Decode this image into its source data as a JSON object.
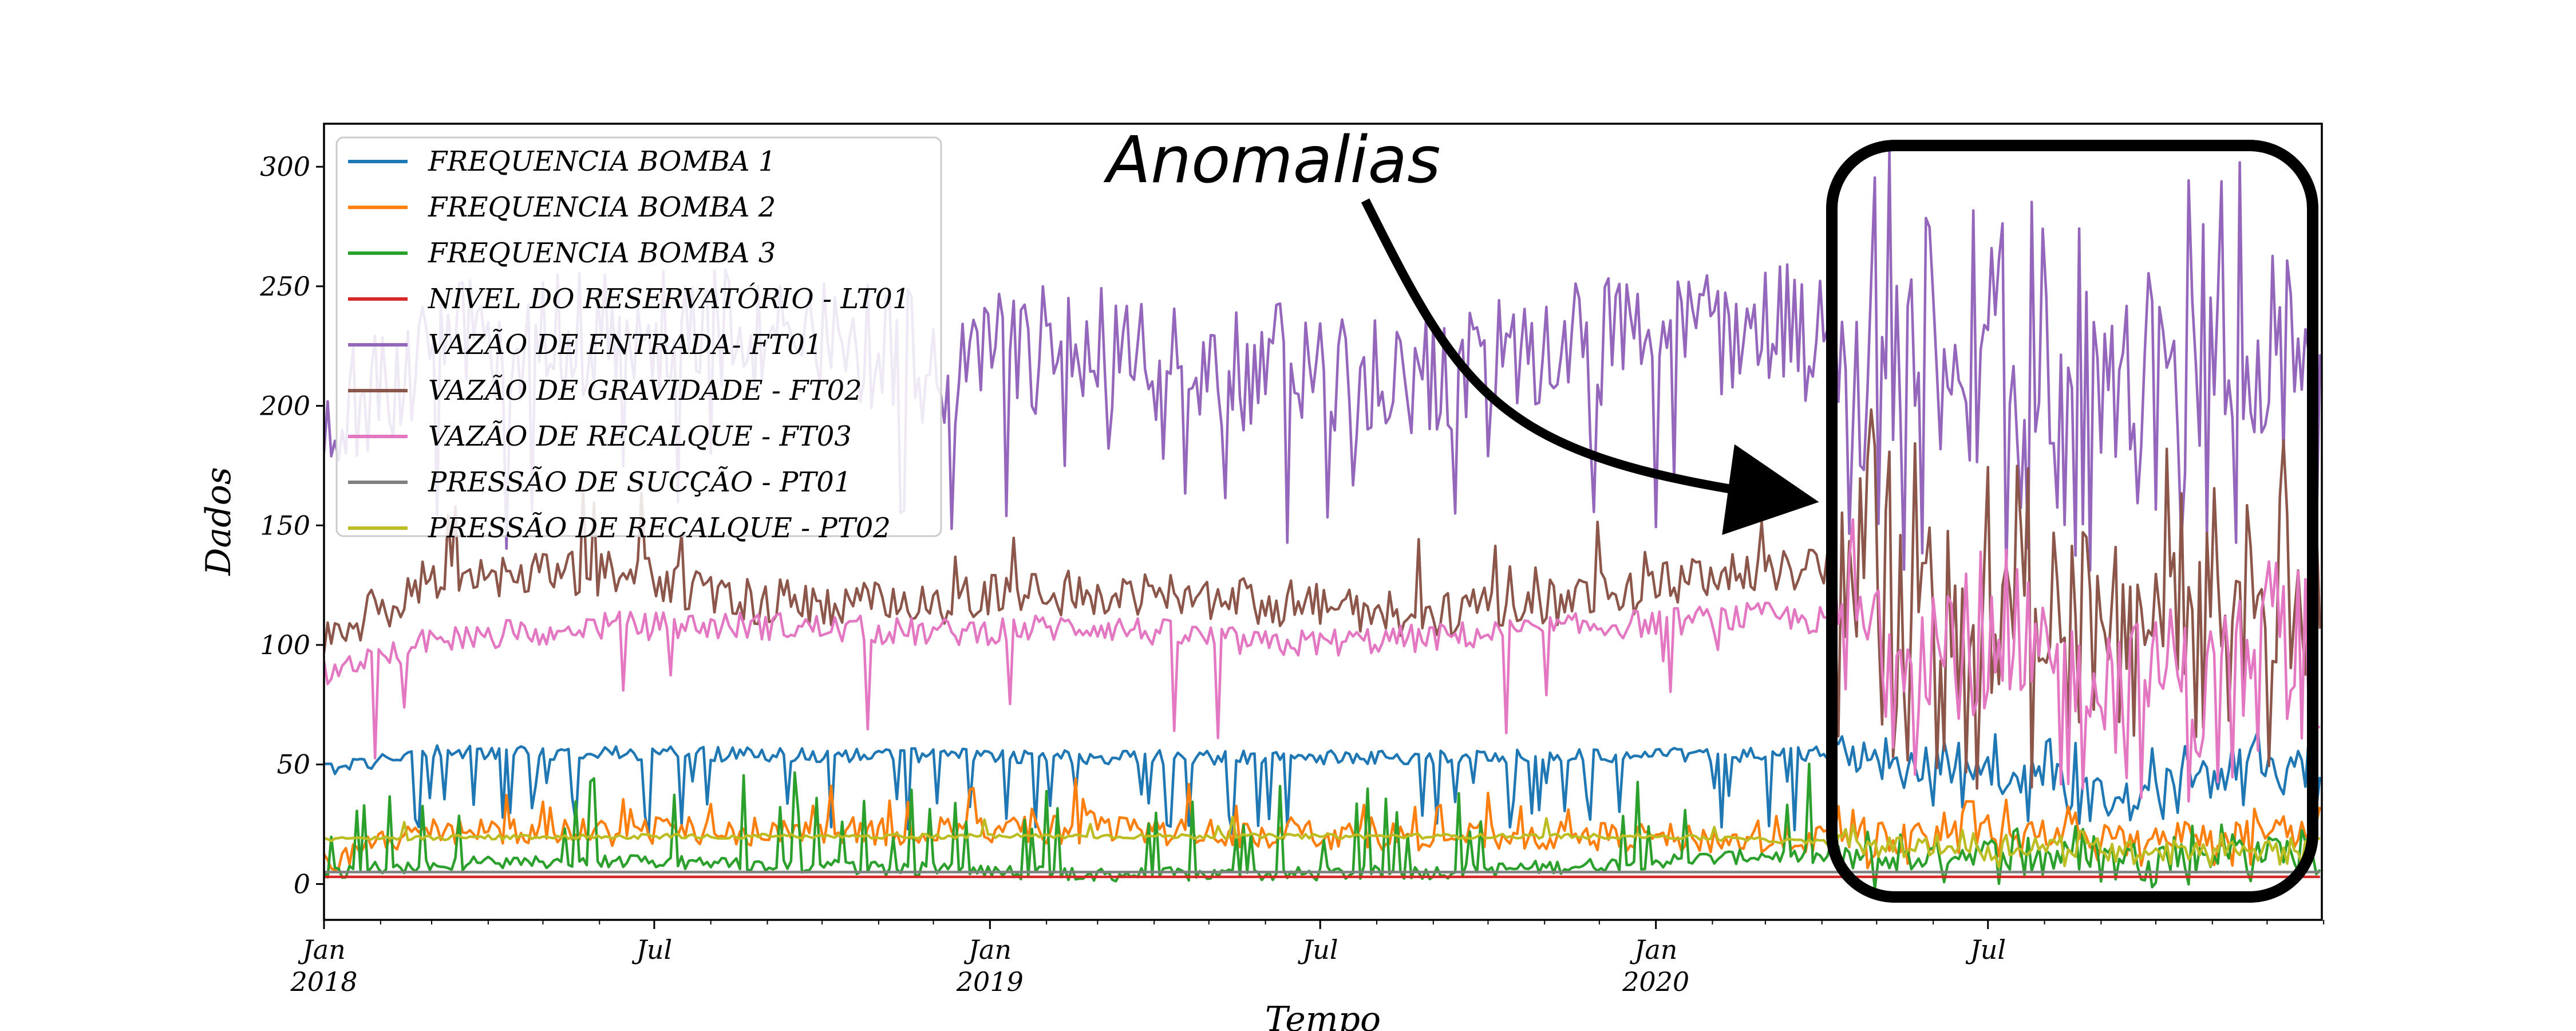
{
  "chart_data": {
    "type": "line",
    "xlabel": "Tempo",
    "ylabel": "Dados",
    "x_range": [
      "2018-01-01",
      "2020-12-31"
    ],
    "ylim": [
      -15,
      318
    ],
    "y_ticks": [
      0,
      50,
      100,
      150,
      200,
      250,
      300
    ],
    "x_tick_labels": [
      {
        "date": "2018-01-01",
        "line1": "Jan",
        "line2": "2018"
      },
      {
        "date": "2018-07-01",
        "line1": "Jul",
        "line2": ""
      },
      {
        "date": "2019-01-01",
        "line1": "Jan",
        "line2": "2019"
      },
      {
        "date": "2019-07-01",
        "line1": "Jul",
        "line2": ""
      },
      {
        "date": "2020-01-01",
        "line1": "Jan",
        "line2": "2020"
      },
      {
        "date": "2020-07-01",
        "line1": "Jul",
        "line2": ""
      }
    ],
    "grid": false,
    "legend_position": "upper-left",
    "annotation": {
      "text": "Anomalias",
      "region_start": "2020-04-05",
      "region_end": "2020-12-31"
    },
    "series": [
      {
        "name": "FREQUENCIA BOMBA 1",
        "color": "#1f77b4",
        "dates": [
          "2018-01-01",
          "2018-03-01",
          "2018-06-01",
          "2018-09-01",
          "2018-12-01",
          "2019-03-01",
          "2019-06-01",
          "2019-09-01",
          "2019-12-01",
          "2020-03-01",
          "2020-05-01",
          "2020-07-01",
          "2020-09-01",
          "2020-12-31"
        ],
        "values": [
          48,
          55,
          55,
          54,
          54,
          53,
          53,
          53,
          54,
          54,
          55,
          45,
          42,
          48
        ]
      },
      {
        "name": "FREQUENCIA BOMBA 2",
        "color": "#ff7f0e",
        "dates": [
          "2018-01-01",
          "2018-03-01",
          "2018-06-01",
          "2018-09-01",
          "2018-12-01",
          "2019-03-01",
          "2019-06-01",
          "2019-09-01",
          "2019-12-01",
          "2020-03-01",
          "2020-05-01",
          "2020-07-01",
          "2020-09-01",
          "2020-12-31"
        ],
        "values": [
          10,
          22,
          22,
          22,
          22,
          23,
          21,
          20,
          20,
          18,
          20,
          22,
          20,
          22
        ]
      },
      {
        "name": "FREQUENCIA BOMBA 3",
        "color": "#2ca02c",
        "dates": [
          "2018-01-01",
          "2018-03-01",
          "2018-06-01",
          "2018-09-01",
          "2018-12-01",
          "2019-03-01",
          "2019-06-01",
          "2019-09-01",
          "2019-12-01",
          "2020-03-01",
          "2020-05-01",
          "2020-07-01",
          "2020-09-01",
          "2020-12-31"
        ],
        "values": [
          5,
          8,
          10,
          8,
          6,
          4,
          4,
          5,
          8,
          12,
          10,
          14,
          12,
          15
        ]
      },
      {
        "name": "NIVEL DO RESERVATÓRIO - LT01",
        "color": "#d62728",
        "dates": [
          "2018-01-01",
          "2018-07-01",
          "2019-01-01",
          "2019-07-01",
          "2020-01-01",
          "2020-07-01",
          "2020-12-31"
        ],
        "values": [
          3,
          3,
          3,
          3,
          3,
          3,
          3
        ]
      },
      {
        "name": "VAZÃO DE ENTRADA- FT01",
        "color": "#9467bd",
        "dates": [
          "2018-01-01",
          "2018-03-01",
          "2018-06-01",
          "2018-09-01",
          "2018-12-01",
          "2019-03-01",
          "2019-06-01",
          "2019-09-01",
          "2019-12-01",
          "2020-03-01",
          "2020-05-01",
          "2020-07-01",
          "2020-09-01",
          "2020-12-31"
        ],
        "values": [
          195,
          225,
          230,
          230,
          220,
          225,
          215,
          215,
          225,
          235,
          220,
          210,
          215,
          210
        ]
      },
      {
        "name": "VAZÃO DE GRAVIDADE - FT02",
        "color": "#8c564b",
        "dates": [
          "2018-01-01",
          "2018-03-01",
          "2018-06-01",
          "2018-09-01",
          "2018-12-01",
          "2019-03-01",
          "2019-06-01",
          "2019-09-01",
          "2019-12-01",
          "2020-03-01",
          "2020-05-01",
          "2020-07-01",
          "2020-09-01",
          "2020-12-31"
        ],
        "values": [
          105,
          125,
          130,
          118,
          118,
          122,
          118,
          112,
          120,
          132,
          128,
          110,
          120,
          115
        ]
      },
      {
        "name": "VAZÃO DE RECALQUE - FT03",
        "color": "#e377c2",
        "dates": [
          "2018-01-01",
          "2018-03-01",
          "2018-06-01",
          "2018-09-01",
          "2018-12-01",
          "2019-03-01",
          "2019-06-01",
          "2019-09-01",
          "2019-12-01",
          "2020-03-01",
          "2020-05-01",
          "2020-07-01",
          "2020-09-01",
          "2020-12-31"
        ],
        "values": [
          88,
          102,
          108,
          108,
          105,
          108,
          100,
          103,
          108,
          112,
          108,
          85,
          90,
          85
        ]
      },
      {
        "name": "PRESSÃO DE SUCÇÃO - PT01",
        "color": "#7f7f7f",
        "dates": [
          "2018-01-01",
          "2018-07-01",
          "2019-01-01",
          "2019-07-01",
          "2020-01-01",
          "2020-07-01",
          "2020-12-31"
        ],
        "values": [
          5,
          5,
          5,
          5,
          5,
          5,
          5
        ]
      },
      {
        "name": "PRESSÃO DE RECALQUE - PT02",
        "color": "#bcbd22",
        "dates": [
          "2018-01-01",
          "2018-07-01",
          "2019-01-01",
          "2019-07-01",
          "2020-01-01",
          "2020-07-01",
          "2020-12-31"
        ],
        "values": [
          19,
          20,
          20,
          20,
          20,
          15,
          15
        ]
      }
    ]
  }
}
